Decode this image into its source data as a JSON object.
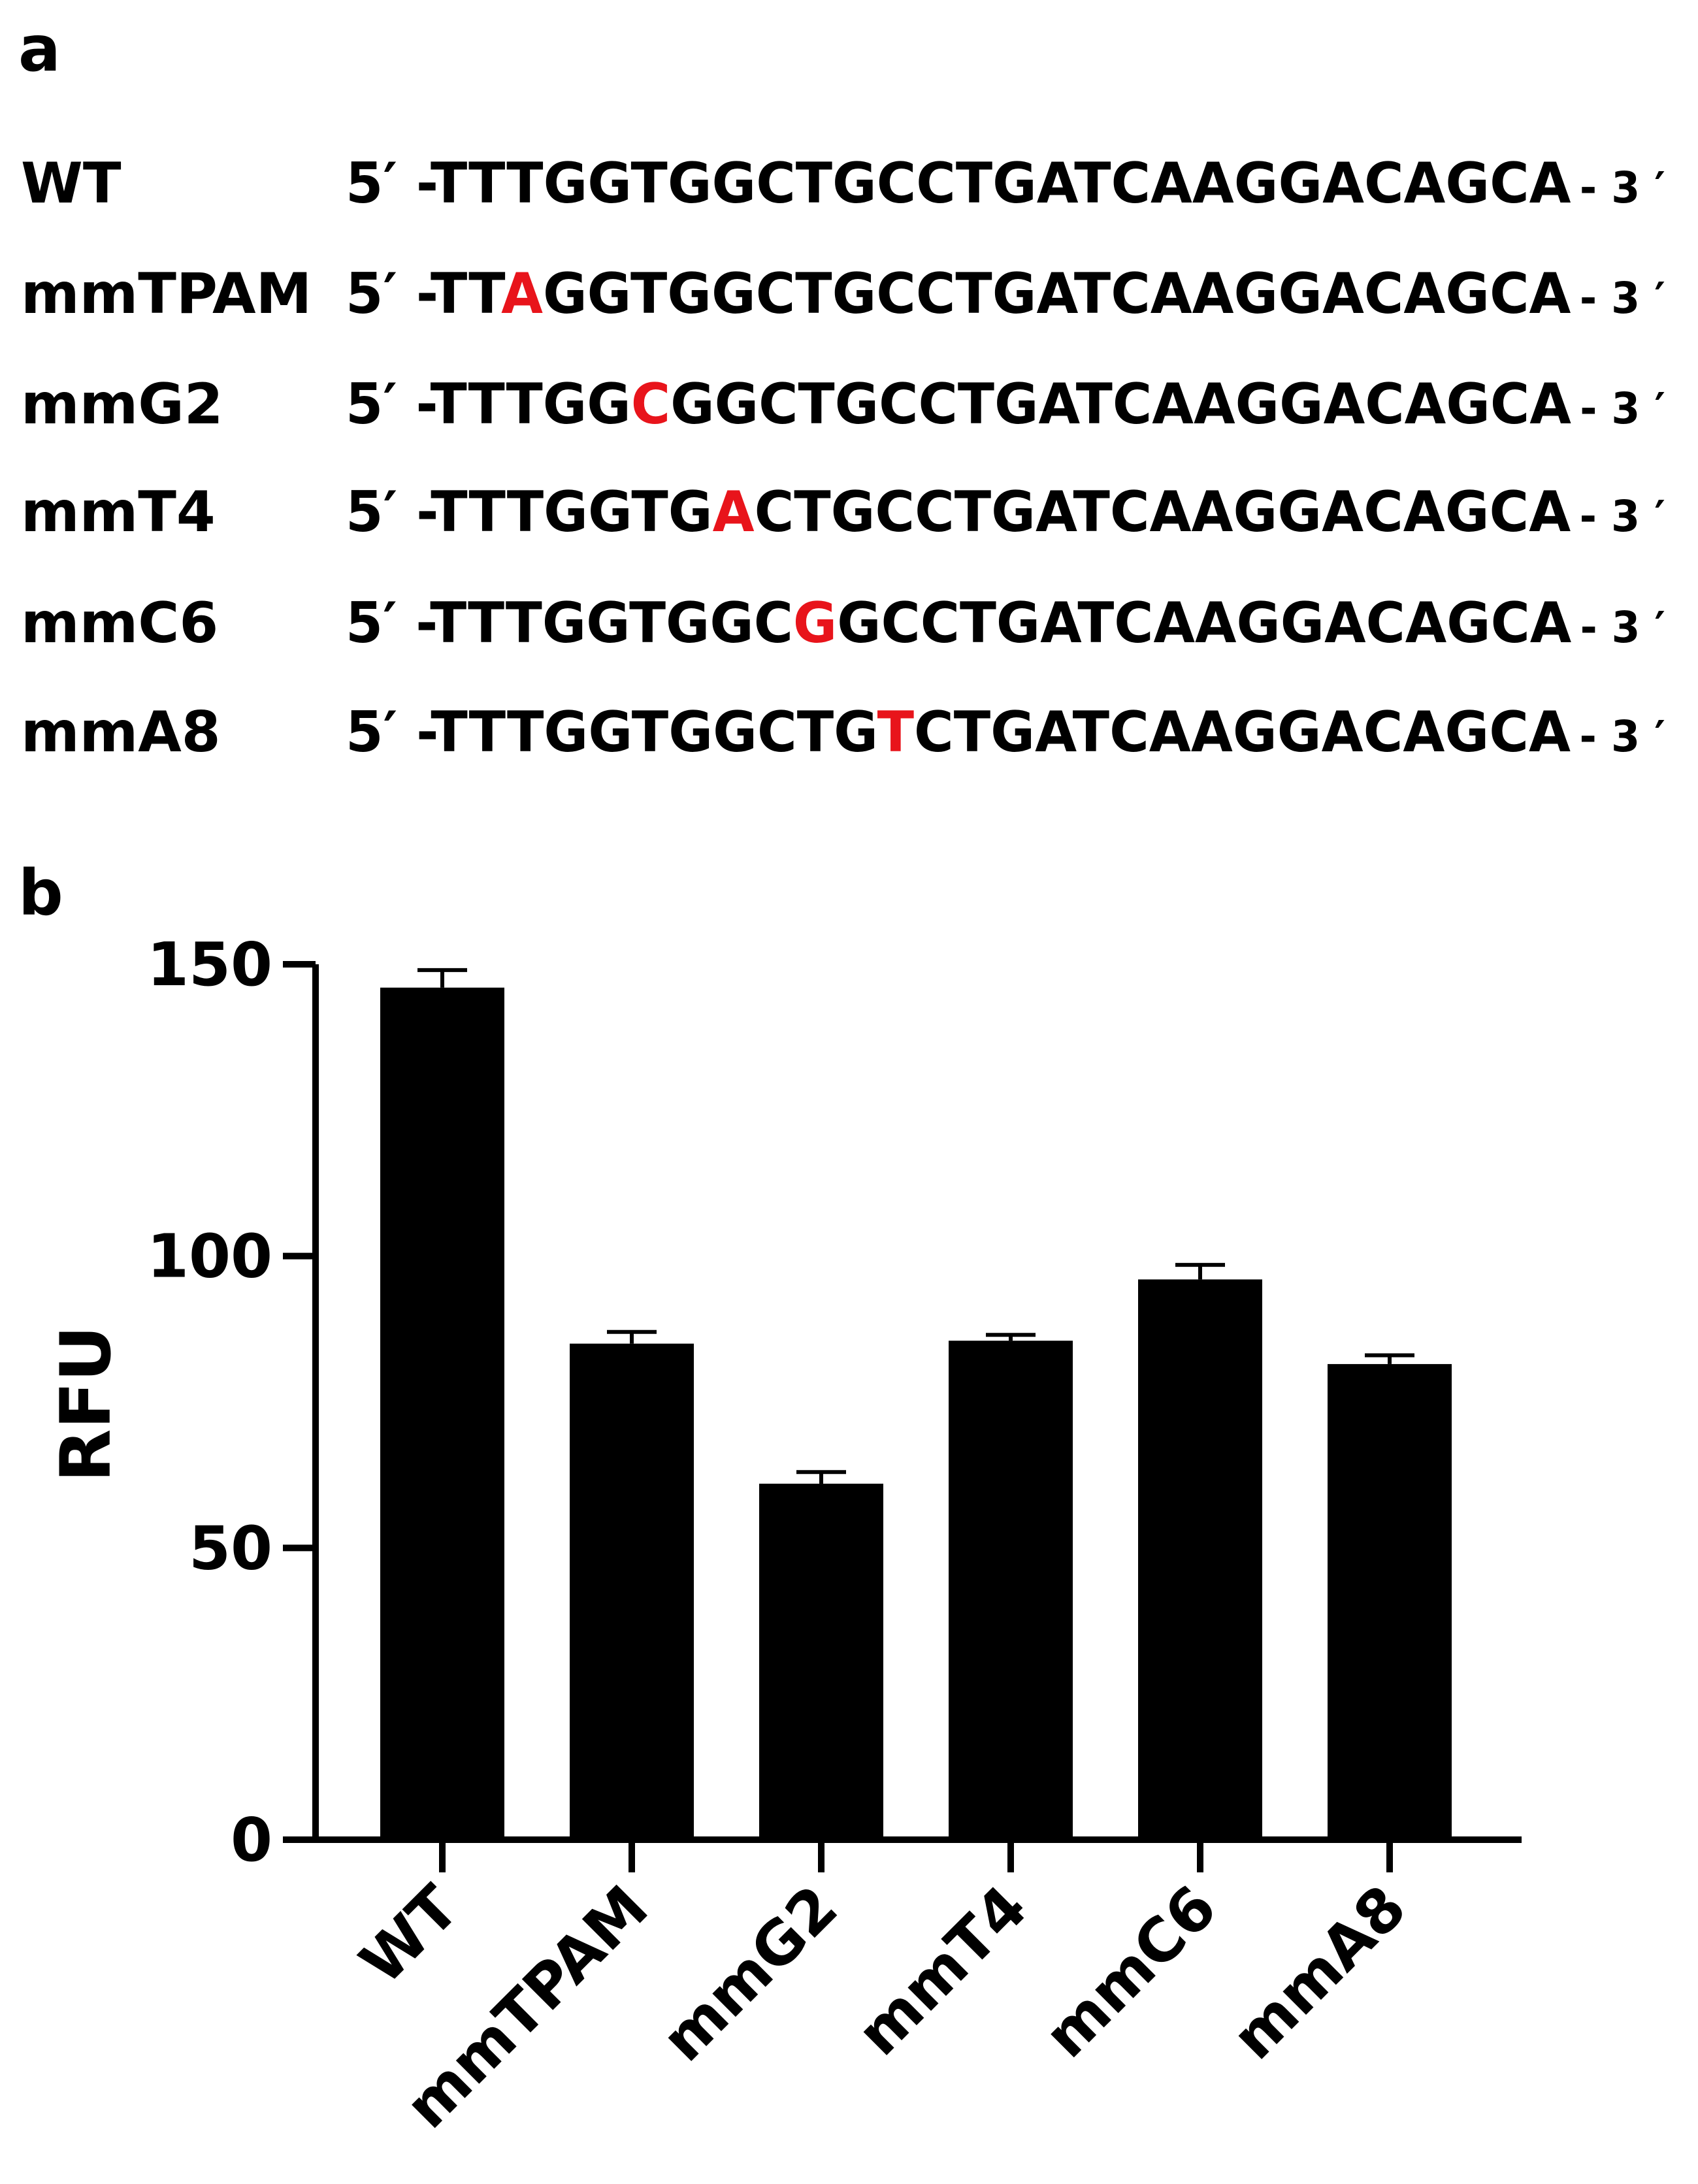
{
  "panel_a": {
    "label": "a",
    "five_prime": "5′ -",
    "three_prime": "- 3 ′",
    "highlight_color": "#e8141b",
    "rows": [
      {
        "name": "WT",
        "before": "TTTGGTGGCTGCCTGATCAAGGACAGCA"
      },
      {
        "name": "mmTPAM",
        "before": "TT",
        "mutation": "A",
        "after": "GGTGGCTGCCTGATCAAGGACAGCA"
      },
      {
        "name": "mmG2",
        "before": "TTTGG",
        "mutation": "C",
        "after": "GGCTGCCTGATCAAGGACAGCA"
      },
      {
        "name": "mmT4",
        "before": "TTTGGTG",
        "mutation": "A",
        "after": "CTGCCTGATCAAGGACAGCA"
      },
      {
        "name": "mmC6",
        "before": "TTTGGTGGC",
        "mutation": "G",
        "after": "GCCTGATCAAGGACAGCA"
      },
      {
        "name": "mmA8",
        "before": "TTTGGTGGCTG",
        "mutation": "T",
        "after": "CTGATCAAGGACAGCA"
      }
    ]
  },
  "chart_data": {
    "type": "bar",
    "panel_label": "b",
    "ylabel": "RFU",
    "categories": [
      "WT",
      "mmTPAM",
      "mmG2",
      "mmT4",
      "mmC6",
      "mmA8"
    ],
    "values": [
      146,
      85,
      61,
      85.5,
      96,
      81.5
    ],
    "errors": [
      3,
      2,
      2,
      1,
      2.5,
      1.5
    ],
    "color": "#000000",
    "ylim": [
      0,
      150
    ],
    "yticks": [
      0,
      50,
      100,
      150
    ]
  }
}
